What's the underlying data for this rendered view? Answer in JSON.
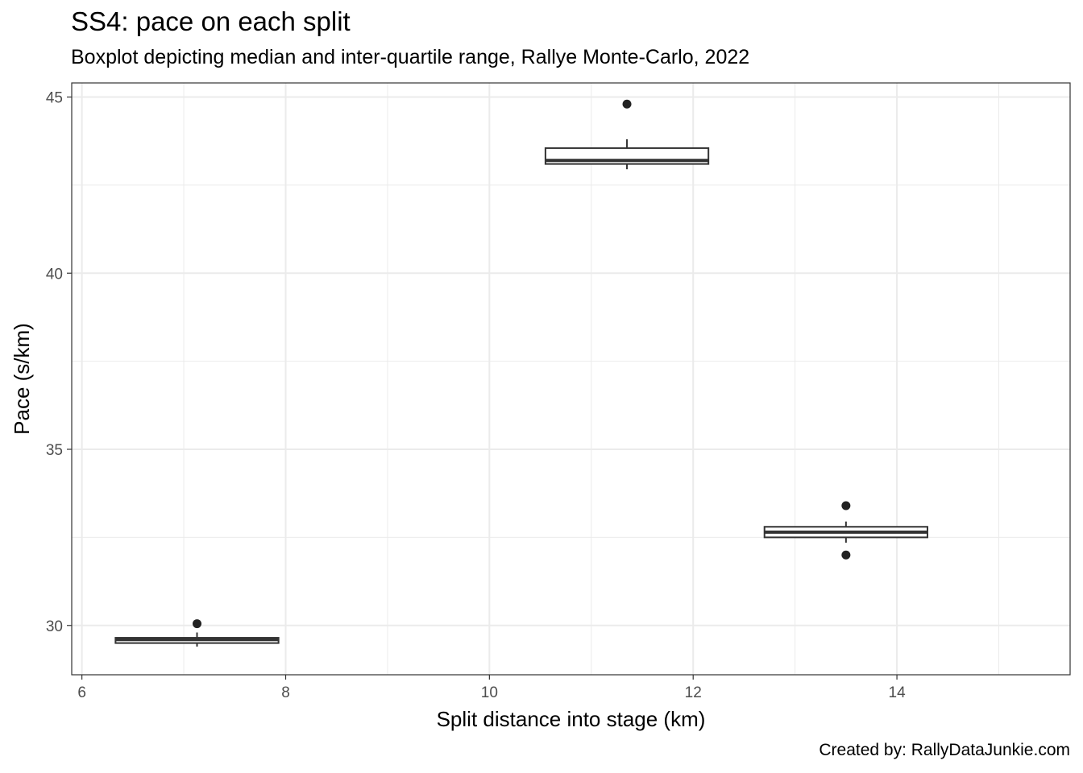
{
  "chart_data": {
    "type": "boxplot",
    "title": "SS4: pace on each split",
    "subtitle": "Boxplot depicting median and inter-quartile range, Rallye Monte-Carlo, 2022",
    "xlabel": "Split distance into stage (km)",
    "ylabel": "Pace (s/km)",
    "caption": "Created by: RallyDataJunkie.com",
    "xlim": [
      5.9,
      15.7
    ],
    "ylim": [
      28.6,
      45.4
    ],
    "xticks": [
      6,
      8,
      10,
      12,
      14
    ],
    "yticks": [
      30,
      35,
      40,
      45
    ],
    "grid": true,
    "legend": "none",
    "boxes": [
      {
        "x": 7.13,
        "x_min": 6.33,
        "x_max": 7.93,
        "whisker_low": 29.4,
        "q1": 29.5,
        "median": 29.6,
        "q3": 29.65,
        "whisker_high": 29.8,
        "outliers": [
          30.05
        ]
      },
      {
        "x": 11.35,
        "x_min": 10.55,
        "x_max": 12.15,
        "whisker_low": 42.95,
        "q1": 43.1,
        "median": 43.2,
        "q3": 43.55,
        "whisker_high": 43.8,
        "outliers": [
          44.8
        ]
      },
      {
        "x": 13.5,
        "x_min": 12.7,
        "x_max": 14.3,
        "whisker_low": 32.35,
        "q1": 32.5,
        "median": 32.65,
        "q3": 32.8,
        "whisker_high": 32.95,
        "outliers": [
          33.4,
          32.0
        ]
      }
    ]
  }
}
